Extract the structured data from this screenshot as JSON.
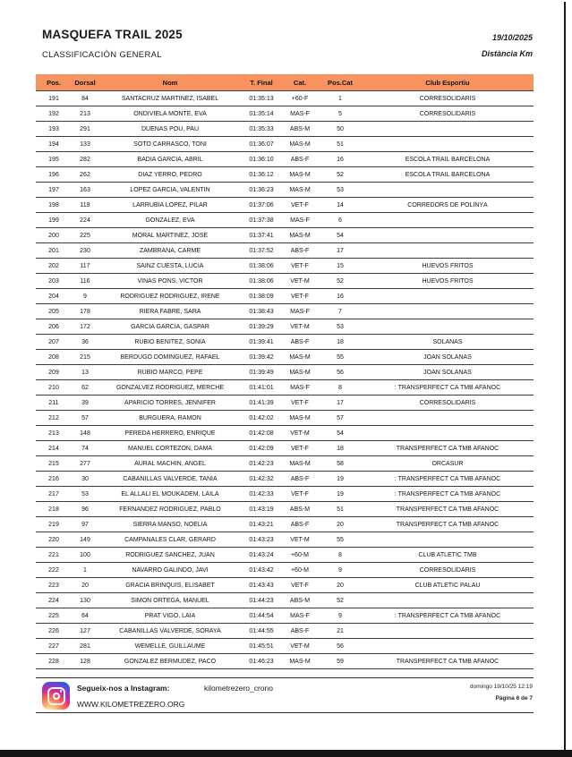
{
  "header": {
    "title": "MASQUEFA TRAIL 2025",
    "subtitle": "CLASSIFICACIÓN GENERAL",
    "date": "19/10/2025",
    "distance_label": "Distància Km"
  },
  "table": {
    "header_bg": "#f6935f",
    "columns": [
      "Pos.",
      "Dorsal",
      "Nom",
      "T. Final",
      "Cat.",
      "Pos.Cat",
      "Club Esportiu"
    ],
    "rows": [
      [
        "191",
        "84",
        "SANTACRUZ MARTÍNEZ, ISABEL",
        "01:35:13",
        "+60-F",
        "1",
        "CORRESOLIDARIS"
      ],
      [
        "192",
        "213",
        "ONDIVIELA MONTE, EVA",
        "01:35:14",
        "MAS-F",
        "5",
        "CORRESOLIDARIS"
      ],
      [
        "193",
        "291",
        "DUEÑAS POU, PAU",
        "01:35:33",
        "ABS-M",
        "50",
        ""
      ],
      [
        "194",
        "133",
        "SOTO CARRASCO, TONI",
        "01:36:07",
        "MAS-M",
        "51",
        ""
      ],
      [
        "195",
        "282",
        "BADIA GARCIA, ABRIL",
        "01:36:10",
        "ABS-F",
        "16",
        "ESCOLA TRAIL BARCELONA"
      ],
      [
        "196",
        "262",
        "DIAZ YERRO, PEDRO",
        "01:36:12",
        "MAS-M",
        "52",
        "ESCOLA TRAIL BARCELONA"
      ],
      [
        "197",
        "163",
        "LÓPEZ GARCÍA, VALENTÍN",
        "01:36:23",
        "MAS-M",
        "53",
        ""
      ],
      [
        "198",
        "119",
        "LARRUBIA LOPEZ, PILAR",
        "01:37:06",
        "VET-F",
        "14",
        "CORREDORS DE POLINYÀ"
      ],
      [
        "199",
        "224",
        "GONZALEZ, EVA",
        "01:37:38",
        "MAS-F",
        "6",
        ""
      ],
      [
        "200",
        "225",
        "MORAL MARTINEZ, JOSE",
        "01:37:41",
        "MAS-M",
        "54",
        ""
      ],
      [
        "201",
        "230",
        "ZAMBRANA, CARME",
        "01:37:52",
        "ABS-F",
        "17",
        ""
      ],
      [
        "202",
        "117",
        "SAINZ CUESTA, LUCIA",
        "01:38:06",
        "VET-F",
        "15",
        "HUEVOS FRITOS"
      ],
      [
        "203",
        "116",
        "VIÑAS PONS, VICTOR",
        "01:38:06",
        "VET-M",
        "52",
        "HUEVOS FRITOS"
      ],
      [
        "204",
        "9",
        "RODRÍGUEZ RODRÍGUEZ, IRENE",
        "01:38:09",
        "VET-F",
        "16",
        ""
      ],
      [
        "205",
        "178",
        "RIERA FABRÉ, SARA",
        "01:38:43",
        "MAS-F",
        "7",
        ""
      ],
      [
        "206",
        "172",
        "GARCIA GARCIA, GASPAR",
        "01:39:29",
        "VET-M",
        "53",
        ""
      ],
      [
        "207",
        "36",
        "RUBIO BENITEZ, SONIA",
        "01:39:41",
        "ABS-F",
        "18",
        "SOLANAS"
      ],
      [
        "208",
        "215",
        "BERDUGO DOMINGUEZ, RAFAEL",
        "01:39:42",
        "MAS-M",
        "55",
        "JOAN SOLANAS"
      ],
      [
        "209",
        "13",
        "RUBIO MARCO, PEPE",
        "01:39:49",
        "MAS-M",
        "56",
        "JOAN SOLANAS"
      ],
      [
        "210",
        "62",
        "GONZÁLVEZ RODRÍGUEZ, MERCHE",
        "01:41:01",
        "MAS-F",
        "8",
        ": TRANSPERFECT CA TMB AFANOC"
      ],
      [
        "211",
        "39",
        "APARICIO TORRES, JENNIFER",
        "01:41:39",
        "VET-F",
        "17",
        "CORRESOLIDARIS"
      ],
      [
        "212",
        "57",
        "BURGUERA, RAMON",
        "01:42:02",
        "MAS-M",
        "57",
        ""
      ],
      [
        "213",
        "148",
        "PEREDA HERRERO, ENRIQUE",
        "01:42:08",
        "VET-M",
        "54",
        ""
      ],
      [
        "214",
        "74",
        "MANUEL CORTEZÓN, DAMA",
        "01:42:09",
        "VET-F",
        "18",
        "TRANSPERFECT CA TMB AFANOC"
      ],
      [
        "215",
        "277",
        "AURAL MACHIN, ANGEL",
        "01:42:23",
        "MAS-M",
        "58",
        "ORCASUR"
      ],
      [
        "216",
        "30",
        "CABANILLAS VALVERDE, TANIA",
        "01:42:32",
        "ABS-F",
        "19",
        ": TRANSPERFECT CA TMB AFANOC"
      ],
      [
        "217",
        "53",
        "EL ALLALI EL MOUKADEM, LAILA",
        "01:42:33",
        "VET-F",
        "19",
        ": TRANSPERFECT CA TMB AFANOC"
      ],
      [
        "218",
        "96",
        "FERNÁNDEZ RODRÍGUEZ, PABLO",
        "01:43:19",
        "ABS-M",
        "51",
        "TRANSPERFECT CA TMB AFANOC"
      ],
      [
        "219",
        "97",
        "SIERRA MANSO, NOELIA",
        "01:43:21",
        "ABS-F",
        "20",
        "TRANSPERFECT CA TMB AFANOC"
      ],
      [
        "220",
        "149",
        "CAMPANALES CLAR, GERARD",
        "01:43:23",
        "VET-M",
        "55",
        ""
      ],
      [
        "221",
        "100",
        "RODRÍGUEZ SÁNCHEZ, JUAN",
        "01:43:24",
        "+60-M",
        "8",
        "CLUB ATLÉTIC TMB"
      ],
      [
        "222",
        "1",
        "NAVARRO GALINDO, JAVI",
        "01:43:42",
        "+60-M",
        "9",
        "CORRESOLIDARIS"
      ],
      [
        "223",
        "20",
        "GRACIA BRINQUIS, ELISABET",
        "01:43:43",
        "VET-F",
        "20",
        "CLUB ATLETIC PALAU"
      ],
      [
        "224",
        "130",
        "SIMON ORTEGA, MANUEL",
        "01:44:23",
        "ABS-M",
        "52",
        ""
      ],
      [
        "225",
        "64",
        "PRAT VIGO, LAIA",
        "01:44:54",
        "MAS-F",
        "9",
        ": TRANSPERFECT CA TMB AFANOC"
      ],
      [
        "226",
        "127",
        "CABANILLAS VALVERDE, SORAYA",
        "01:44:55",
        "ABS-F",
        "21",
        ""
      ],
      [
        "227",
        "281",
        "WEMELLE, GUILLAUME",
        "01:45:51",
        "VET-M",
        "56",
        ""
      ],
      [
        "228",
        "128",
        "GONZÁLEZ BERMÚDEZ, PACO",
        "01:46:23",
        "MAS-M",
        "59",
        "TRANSPERFECT CA TMB AFANOC"
      ]
    ]
  },
  "footer": {
    "instagram_label": "Segueix-nos a Instagram:",
    "instagram_handle": "kilometrezero_crono",
    "website": "WWW.KILOMETREZERO.ORG",
    "print_datetime": "domingo 19/10/25 12:19",
    "page_number": "Página 6 de 7"
  }
}
